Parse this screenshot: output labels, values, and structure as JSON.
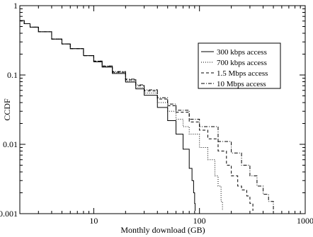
{
  "chart_data": {
    "type": "line",
    "xlabel": "Monthly download (GB)",
    "ylabel": "CCDF",
    "xscale": "log",
    "yscale": "log",
    "xlim": [
      2,
      1000
    ],
    "ylim": [
      0.001,
      1
    ],
    "x_ticks": [
      10,
      100,
      1000
    ],
    "x_tick_labels": [
      "10",
      "100",
      "1000"
    ],
    "y_ticks": [
      0.001,
      0.01,
      0.1,
      1
    ],
    "y_tick_labels": [
      "0.001",
      "0.01",
      "0.1",
      "1"
    ],
    "grid": false,
    "legend": {
      "position": "top-right",
      "boxed": true
    },
    "series": [
      {
        "name": "300 kbps access",
        "dash": "solid",
        "points": [
          [
            2.0,
            0.61
          ],
          [
            2.2,
            0.55
          ],
          [
            2.5,
            0.49
          ],
          [
            3,
            0.42
          ],
          [
            4,
            0.33
          ],
          [
            5,
            0.28
          ],
          [
            6,
            0.24
          ],
          [
            8,
            0.19
          ],
          [
            10,
            0.155
          ],
          [
            12,
            0.13
          ],
          [
            15,
            0.105
          ],
          [
            20,
            0.079
          ],
          [
            25,
            0.063
          ],
          [
            30,
            0.051
          ],
          [
            40,
            0.034
          ],
          [
            50,
            0.022
          ],
          [
            60,
            0.014
          ],
          [
            70,
            0.0085
          ],
          [
            80,
            0.0045
          ],
          [
            85,
            0.003
          ],
          [
            88,
            0.002
          ],
          [
            90,
            0.0014
          ],
          [
            91,
            0.0011
          ]
        ]
      },
      {
        "name": "700 kbps access",
        "dash": "dotted",
        "points": [
          [
            2.0,
            0.61
          ],
          [
            2.2,
            0.55
          ],
          [
            2.5,
            0.49
          ],
          [
            3,
            0.42
          ],
          [
            4,
            0.33
          ],
          [
            5,
            0.28
          ],
          [
            6,
            0.24
          ],
          [
            8,
            0.19
          ],
          [
            10,
            0.157
          ],
          [
            12,
            0.132
          ],
          [
            15,
            0.108
          ],
          [
            20,
            0.082
          ],
          [
            25,
            0.066
          ],
          [
            30,
            0.055
          ],
          [
            40,
            0.04
          ],
          [
            50,
            0.03
          ],
          [
            60,
            0.023
          ],
          [
            70,
            0.018
          ],
          [
            80,
            0.014
          ],
          [
            100,
            0.009
          ],
          [
            120,
            0.006
          ],
          [
            140,
            0.0035
          ],
          [
            150,
            0.0025
          ],
          [
            160,
            0.0015
          ],
          [
            165,
            0.0011
          ]
        ]
      },
      {
        "name": "1.5 Mbps access",
        "dash": "dashed",
        "points": [
          [
            2.0,
            0.61
          ],
          [
            2.2,
            0.55
          ],
          [
            2.5,
            0.49
          ],
          [
            3,
            0.42
          ],
          [
            4,
            0.33
          ],
          [
            5,
            0.28
          ],
          [
            6,
            0.24
          ],
          [
            8,
            0.19
          ],
          [
            10,
            0.158
          ],
          [
            12,
            0.134
          ],
          [
            15,
            0.11
          ],
          [
            20,
            0.085
          ],
          [
            25,
            0.07
          ],
          [
            30,
            0.059
          ],
          [
            40,
            0.045
          ],
          [
            50,
            0.036
          ],
          [
            60,
            0.029
          ],
          [
            80,
            0.021
          ],
          [
            100,
            0.016
          ],
          [
            120,
            0.012
          ],
          [
            150,
            0.008
          ],
          [
            180,
            0.005
          ],
          [
            200,
            0.0035
          ],
          [
            230,
            0.0025
          ],
          [
            250,
            0.0022
          ],
          [
            280,
            0.0018
          ],
          [
            300,
            0.0014
          ],
          [
            320,
            0.0011
          ]
        ]
      },
      {
        "name": "10 Mbps access",
        "dash": "dashdot",
        "points": [
          [
            2.0,
            0.61
          ],
          [
            2.2,
            0.55
          ],
          [
            2.5,
            0.49
          ],
          [
            3,
            0.42
          ],
          [
            4,
            0.33
          ],
          [
            5,
            0.28
          ],
          [
            6,
            0.24
          ],
          [
            8,
            0.19
          ],
          [
            10,
            0.159
          ],
          [
            12,
            0.135
          ],
          [
            15,
            0.112
          ],
          [
            20,
            0.087
          ],
          [
            25,
            0.072
          ],
          [
            30,
            0.061
          ],
          [
            40,
            0.047
          ],
          [
            50,
            0.038
          ],
          [
            60,
            0.031
          ],
          [
            80,
            0.023
          ],
          [
            100,
            0.018
          ],
          [
            150,
            0.011
          ],
          [
            200,
            0.0075
          ],
          [
            250,
            0.005
          ],
          [
            300,
            0.0035
          ],
          [
            350,
            0.0025
          ],
          [
            400,
            0.0019
          ],
          [
            450,
            0.0015
          ],
          [
            500,
            0.0011
          ]
        ]
      }
    ]
  }
}
